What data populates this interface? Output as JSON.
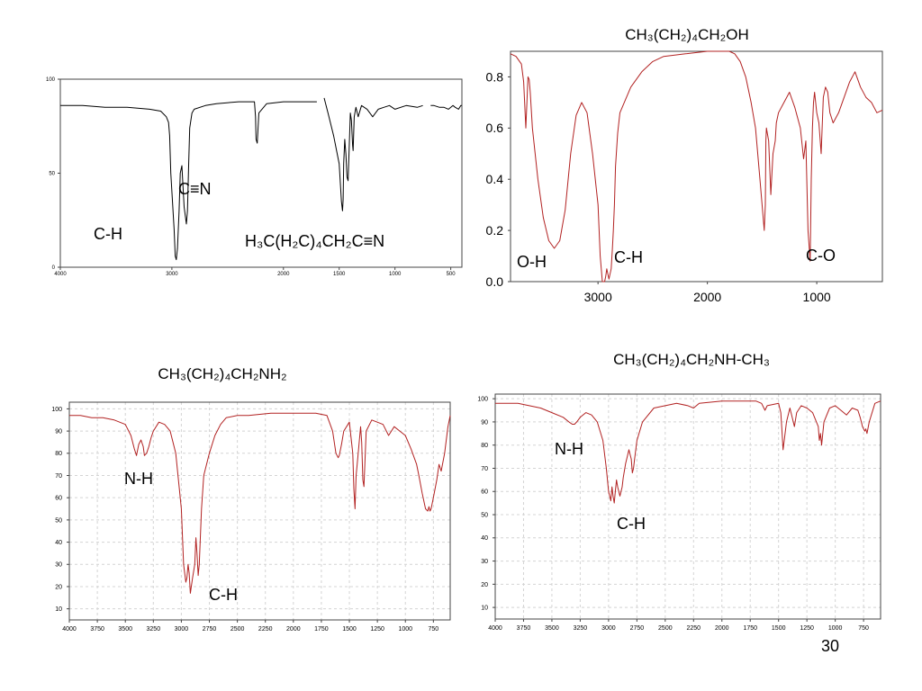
{
  "slide": {
    "page_number": "30"
  },
  "chart_data": [
    {
      "id": "nitrile",
      "type": "line",
      "title": "",
      "xlabel": "",
      "ylabel": "",
      "xlim": [
        4000,
        400
      ],
      "ylim": [
        0,
        100
      ],
      "grid": false,
      "line_color": "#000000",
      "x_ticks": [
        "4000",
        "3000",
        "2000",
        "1500",
        "1000",
        "500"
      ],
      "x_tick_values": [
        4000,
        3000,
        2000,
        1500,
        1000,
        500
      ],
      "y_ticks": [
        "100",
        "50",
        "0"
      ],
      "y_tick_values": [
        100,
        50,
        0
      ],
      "segments": [
        {
          "x": [
            4000,
            3800,
            3600,
            3400,
            3200,
            3100,
            3050,
            3030,
            3020,
            3010,
            2980,
            2970,
            2960,
            2950,
            2935,
            2925,
            2910,
            2890,
            2870,
            2860,
            2850,
            2840,
            2820,
            2800,
            2700,
            2600,
            2400,
            2300,
            2260,
            2250,
            2245,
            2235,
            2220,
            2150,
            2000,
            1700
          ],
          "y": [
            86,
            86,
            85,
            85,
            84,
            83,
            80,
            77,
            70,
            50,
            20,
            6,
            4,
            10,
            30,
            50,
            54,
            32,
            23,
            30,
            54,
            74,
            82,
            84,
            86,
            87,
            88,
            88,
            88,
            80,
            68,
            66,
            82,
            87,
            88,
            88
          ]
        },
        {
          "x": [
            1635,
            1600,
            1550,
            1500,
            1480,
            1470,
            1465,
            1460,
            1450,
            1440,
            1430,
            1420,
            1400,
            1390,
            1380,
            1375,
            1365,
            1350,
            1330,
            1300,
            1250,
            1200,
            1150,
            1100,
            1050,
            1000,
            900,
            800,
            750
          ],
          "y": [
            90,
            82,
            70,
            55,
            35,
            30,
            36,
            55,
            68,
            60,
            48,
            46,
            82,
            78,
            65,
            62,
            80,
            85,
            80,
            86,
            84,
            80,
            84,
            85,
            86,
            84,
            86,
            85,
            86
          ]
        },
        {
          "x": [
            680,
            650,
            600,
            560,
            520,
            480,
            460,
            430,
            410,
            400
          ],
          "y": [
            86,
            86,
            85,
            85,
            84,
            86,
            85,
            84,
            86,
            86
          ]
        }
      ],
      "annotations": [
        "C-H",
        "C≡N",
        "H₃C(H₂C)₄CH₂C≡N"
      ]
    },
    {
      "id": "alcohol",
      "type": "line",
      "title": "CH₃(CH₂)₄CH₂OH",
      "xlabel": "",
      "ylabel": "",
      "xlim": [
        3800,
        400
      ],
      "ylim": [
        0,
        0.9
      ],
      "grid": false,
      "line_color": "#b22222",
      "x_ticks": [
        "3000",
        "2000",
        "1000"
      ],
      "x_tick_values": [
        3000,
        2000,
        1000
      ],
      "y_ticks": [
        "0.0",
        "0.2",
        "0.4",
        "0.6",
        "0.8"
      ],
      "y_tick_values": [
        0,
        0.2,
        0.4,
        0.6,
        0.8
      ],
      "segments": [
        {
          "x": [
            3800,
            3750,
            3700,
            3680,
            3660,
            3640,
            3630,
            3620,
            3600,
            3550,
            3500,
            3450,
            3400,
            3350,
            3300,
            3250,
            3200,
            3150,
            3100,
            3050,
            3000,
            2980,
            2960,
            2950,
            2940,
            2930,
            2920,
            2900,
            2880,
            2870,
            2860,
            2850,
            2840,
            2820,
            2800,
            2700,
            2600,
            2500,
            2400,
            2200,
            2000,
            1800,
            1750,
            1700,
            1650,
            1600,
            1560,
            1520,
            1480,
            1470,
            1465,
            1460,
            1440,
            1420,
            1400,
            1380,
            1370,
            1350,
            1300,
            1250,
            1200,
            1150,
            1120,
            1100,
            1080,
            1060,
            1050,
            1040,
            1030,
            1020,
            1000,
            980,
            960,
            940,
            920,
            900,
            880,
            850,
            800,
            750,
            700,
            650,
            600,
            550,
            500,
            450,
            400
          ],
          "y": [
            0.89,
            0.88,
            0.85,
            0.78,
            0.6,
            0.8,
            0.79,
            0.74,
            0.6,
            0.4,
            0.25,
            0.16,
            0.13,
            0.16,
            0.28,
            0.5,
            0.65,
            0.7,
            0.66,
            0.5,
            0.3,
            0.1,
            0.0,
            0.0,
            0.0,
            0.02,
            0.05,
            0.01,
            0.05,
            0.12,
            0.2,
            0.3,
            0.45,
            0.58,
            0.66,
            0.76,
            0.82,
            0.86,
            0.88,
            0.89,
            0.9,
            0.9,
            0.89,
            0.86,
            0.8,
            0.7,
            0.6,
            0.4,
            0.2,
            0.3,
            0.55,
            0.6,
            0.55,
            0.34,
            0.5,
            0.55,
            0.62,
            0.66,
            0.7,
            0.74,
            0.68,
            0.6,
            0.48,
            0.55,
            0.2,
            0.08,
            0.4,
            0.6,
            0.7,
            0.74,
            0.66,
            0.62,
            0.5,
            0.72,
            0.76,
            0.74,
            0.66,
            0.62,
            0.66,
            0.72,
            0.78,
            0.82,
            0.76,
            0.72,
            0.7,
            0.66,
            0.67
          ]
        }
      ],
      "annotations": [
        "O-H",
        "C-H",
        "C-O"
      ]
    },
    {
      "id": "amine",
      "type": "line",
      "title": "CH₃(CH₂)₄CH₂NH₂",
      "xlabel": "",
      "ylabel": "",
      "xlim": [
        4000,
        600
      ],
      "ylim": [
        5,
        103
      ],
      "grid": true,
      "line_color": "#b22222",
      "x_ticks": [
        "4000",
        "3750",
        "3500",
        "3250",
        "3000",
        "2750",
        "2500",
        "2250",
        "2000",
        "1750",
        "1500",
        "1250",
        "1000",
        "750"
      ],
      "x_tick_values": [
        4000,
        3750,
        3500,
        3250,
        3000,
        2750,
        2500,
        2250,
        2000,
        1750,
        1500,
        1250,
        1000,
        750
      ],
      "y_ticks": [
        "100",
        "90",
        "80",
        "70",
        "60",
        "50",
        "40",
        "30",
        "20",
        "10"
      ],
      "y_tick_values": [
        100,
        90,
        80,
        70,
        60,
        50,
        40,
        30,
        20,
        10
      ],
      "segments": [
        {
          "x": [
            4000,
            3900,
            3800,
            3700,
            3600,
            3500,
            3450,
            3420,
            3400,
            3380,
            3360,
            3340,
            3330,
            3310,
            3290,
            3270,
            3250,
            3200,
            3150,
            3100,
            3050,
            3000,
            2980,
            2960,
            2950,
            2940,
            2930,
            2920,
            2900,
            2880,
            2870,
            2860,
            2850,
            2840,
            2820,
            2800,
            2750,
            2700,
            2650,
            2600,
            2500,
            2400,
            2200,
            2000,
            1800,
            1700,
            1650,
            1620,
            1600,
            1590,
            1570,
            1550,
            1500,
            1470,
            1460,
            1450,
            1440,
            1430,
            1400,
            1390,
            1380,
            1370,
            1350,
            1300,
            1200,
            1150,
            1100,
            1050,
            1000,
            950,
            900,
            880,
            850,
            820,
            800,
            790,
            780,
            770,
            750,
            720,
            700,
            680,
            650,
            620,
            600
          ],
          "y": [
            97,
            97,
            96,
            96,
            95,
            93,
            88,
            82,
            79,
            84,
            86,
            83,
            79,
            80,
            83,
            87,
            90,
            94,
            93,
            90,
            80,
            55,
            30,
            22,
            24,
            30,
            26,
            17,
            24,
            30,
            42,
            35,
            25,
            30,
            55,
            70,
            80,
            88,
            93,
            96,
            97,
            97,
            98,
            98,
            98,
            97,
            90,
            80,
            78,
            79,
            84,
            90,
            94,
            80,
            64,
            55,
            70,
            75,
            92,
            85,
            68,
            65,
            90,
            95,
            93,
            88,
            92,
            90,
            88,
            82,
            75,
            70,
            62,
            55,
            54,
            56,
            54,
            55,
            60,
            68,
            75,
            72,
            80,
            92,
            97
          ]
        }
      ],
      "annotations": [
        "N-H",
        "C-H"
      ]
    },
    {
      "id": "secamine",
      "type": "line",
      "title": "CH₃(CH₂)₄CH₂NH-CH₃",
      "xlabel": "",
      "ylabel": "",
      "xlim": [
        4000,
        600
      ],
      "ylim": [
        5,
        102
      ],
      "grid": true,
      "line_color": "#b22222",
      "x_ticks": [
        "4000",
        "3750",
        "3500",
        "3250",
        "3000",
        "2750",
        "2500",
        "2250",
        "2000",
        "1750",
        "1500",
        "1250",
        "1000",
        "750"
      ],
      "x_tick_values": [
        4000,
        3750,
        3500,
        3250,
        3000,
        2750,
        2500,
        2250,
        2000,
        1750,
        1500,
        1250,
        1000,
        750
      ],
      "y_ticks": [
        "100",
        "90",
        "80",
        "70",
        "60",
        "50",
        "40",
        "30",
        "20",
        "10"
      ],
      "y_tick_values": [
        100,
        90,
        80,
        70,
        60,
        50,
        40,
        30,
        20,
        10
      ],
      "segments": [
        {
          "x": [
            4000,
            3900,
            3800,
            3700,
            3600,
            3500,
            3400,
            3350,
            3320,
            3300,
            3280,
            3250,
            3200,
            3150,
            3100,
            3050,
            3020,
            3000,
            2980,
            2970,
            2960,
            2950,
            2940,
            2930,
            2920,
            2900,
            2880,
            2870,
            2850,
            2820,
            2800,
            2790,
            2780,
            2770,
            2750,
            2700,
            2600,
            2500,
            2400,
            2300,
            2250,
            2200,
            2000,
            1800,
            1700,
            1650,
            1620,
            1600,
            1500,
            1480,
            1470,
            1460,
            1450,
            1430,
            1400,
            1380,
            1360,
            1340,
            1300,
            1250,
            1200,
            1150,
            1140,
            1130,
            1120,
            1110,
            1100,
            1050,
            1000,
            950,
            900,
            850,
            800,
            780,
            760,
            740,
            730,
            720,
            700,
            650,
            600
          ],
          "y": [
            98,
            98,
            98,
            97,
            96,
            94,
            92,
            90,
            89,
            89,
            90,
            92,
            94,
            93,
            90,
            82,
            70,
            60,
            56,
            62,
            58,
            55,
            60,
            65,
            62,
            58,
            62,
            66,
            72,
            78,
            74,
            68,
            70,
            74,
            82,
            90,
            96,
            97,
            98,
            97,
            96,
            98,
            99,
            99,
            99,
            98,
            95,
            97,
            98,
            94,
            86,
            78,
            82,
            90,
            96,
            92,
            88,
            94,
            97,
            96,
            94,
            88,
            82,
            85,
            80,
            85,
            90,
            96,
            97,
            95,
            93,
            96,
            95,
            92,
            88,
            86,
            87,
            85,
            90,
            98,
            99
          ]
        }
      ],
      "annotations": [
        "N-H",
        "C-H"
      ]
    }
  ]
}
